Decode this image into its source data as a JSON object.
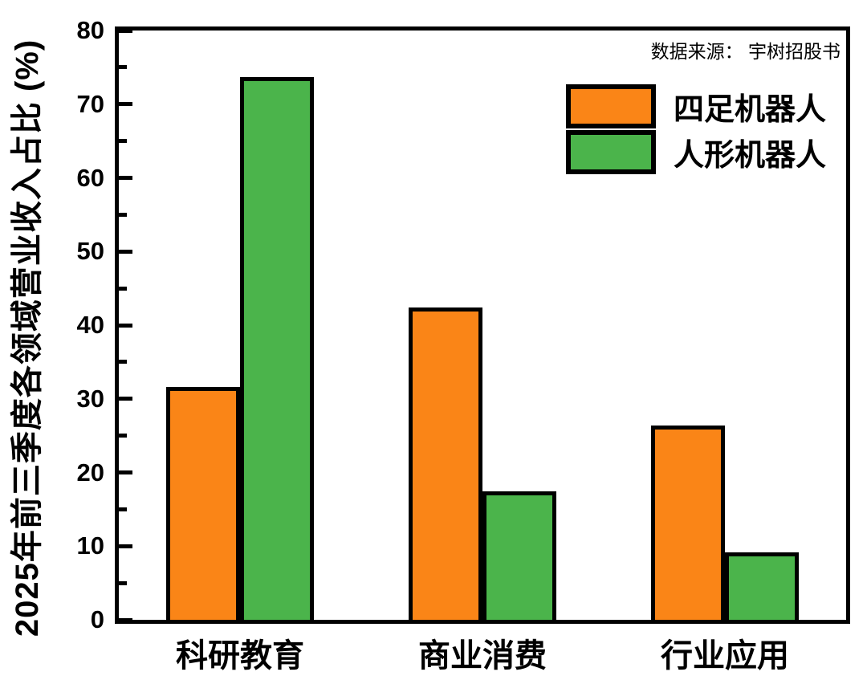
{
  "chart_data": {
    "type": "bar",
    "title": "",
    "ylabel": "2025年前三季度各领域营业收入占比 (%)",
    "xlabel": "",
    "source_note": "数据来源： 宇树招股书",
    "categories": [
      "科研教育",
      "商业消费",
      "行业应用"
    ],
    "series": [
      {
        "name": "四足机器人",
        "color": "#FA8517",
        "values": [
          31.6,
          42.4,
          26.4
        ]
      },
      {
        "name": "人形机器人",
        "color": "#4BB44B",
        "values": [
          73.7,
          17.4,
          9.2
        ]
      }
    ],
    "ylim": [
      0,
      80
    ],
    "yticks": [
      0,
      10,
      20,
      30,
      40,
      50,
      60,
      70,
      80
    ],
    "minor_tick_step": 5,
    "grid": false,
    "legend_position": "top-right",
    "axis_color": "#000000",
    "background": "#FFFFFF"
  }
}
